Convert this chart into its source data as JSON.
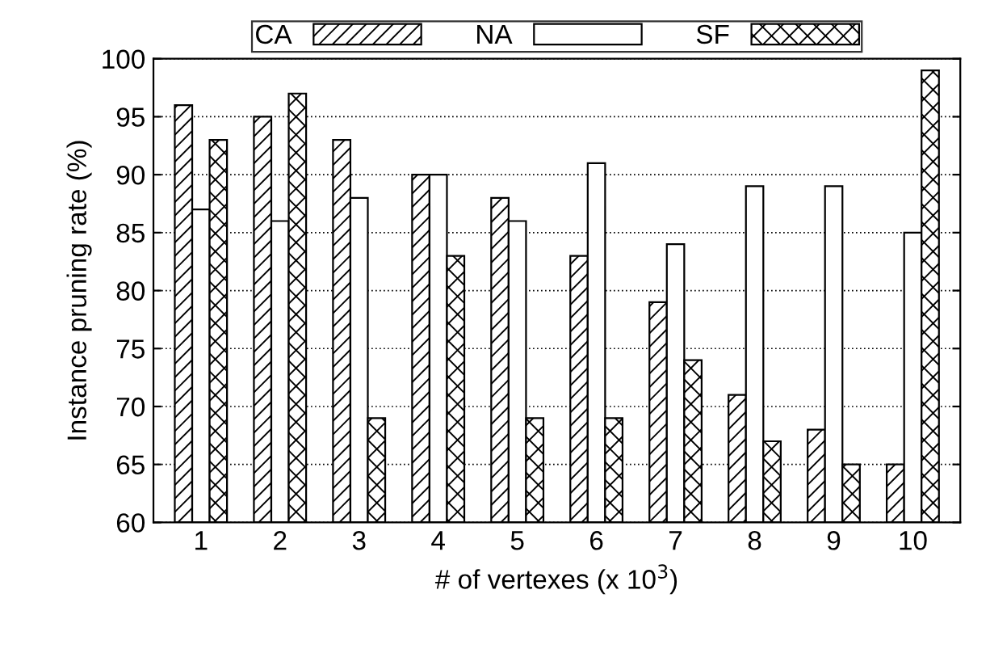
{
  "chart_data": {
    "type": "bar",
    "xlabel": "# of vertexes (x 10$^{3}$)",
    "ylabel": "Instance pruning rate (%)",
    "categories": [
      "1",
      "2",
      "3",
      "4",
      "5",
      "6",
      "7",
      "8",
      "9",
      "10"
    ],
    "series": [
      {
        "name": "CA",
        "color": "#000000",
        "values": [
          96,
          95,
          93,
          90,
          88,
          83,
          79,
          71,
          68,
          65
        ]
      },
      {
        "name": "NA",
        "color": "#000000",
        "values": [
          87,
          86,
          88,
          90,
          86,
          91,
          84,
          89,
          89,
          85
        ]
      },
      {
        "name": "SF",
        "color": "#000000",
        "values": [
          93,
          97,
          69,
          83,
          69,
          69,
          74,
          67,
          65,
          99
        ]
      }
    ],
    "ylim": [
      60,
      100
    ],
    "yticks": [
      60,
      65,
      70,
      75,
      80,
      85,
      90,
      95,
      100
    ],
    "grid": "y",
    "legend": "top"
  }
}
